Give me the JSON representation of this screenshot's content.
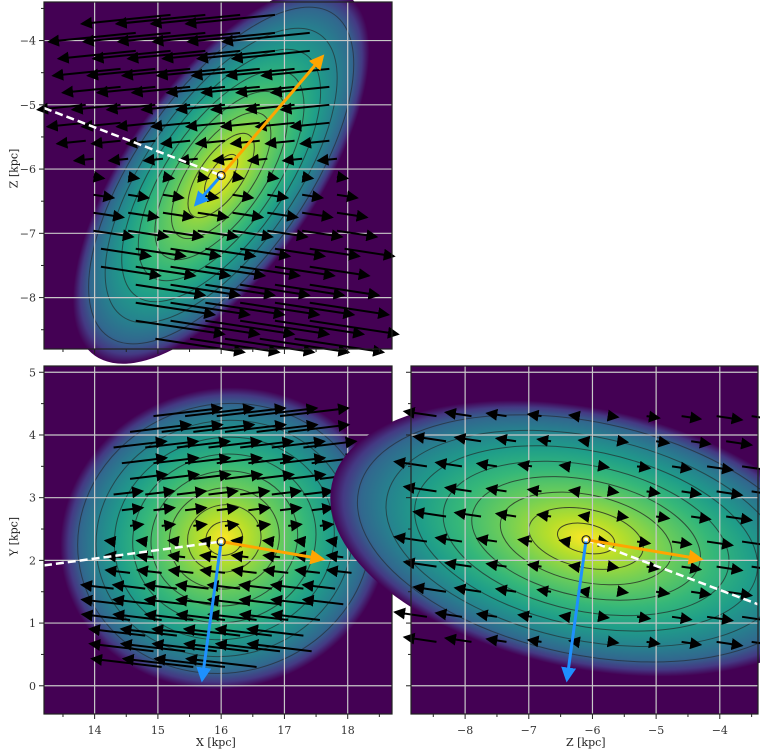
{
  "colors": {
    "background_low": "#440154",
    "mid": "#21918c",
    "peak": "#fde725",
    "grid": "#c8c8c8",
    "orange_arrow": "#ffa500",
    "blue_arrow": "#1e90ff",
    "dashed_line": "#ffffff",
    "quiver": "#000000",
    "contour": "#222222"
  },
  "chart_data": [
    {
      "type": "heatmap",
      "panel": "top-left",
      "title": "",
      "xlabel": "",
      "ylabel": "Z [kpc]",
      "xlim": [
        13.2,
        18.7
      ],
      "ylim": [
        -8.8,
        -3.4
      ],
      "xticks": [
        14,
        15,
        16,
        17,
        18
      ],
      "xtick_labels_shown": false,
      "yticks": [
        -4,
        -5,
        -6,
        -7,
        -8
      ],
      "ytick_labels": [
        "−4",
        "−5",
        "−6",
        "−7",
        "−8"
      ],
      "grid": true,
      "density_peak": {
        "x": 16.0,
        "y": -6.1
      },
      "density_shape": "ellipse elongated along NW-SE diagonal",
      "center_marker": {
        "x": 16.0,
        "y": -6.1
      },
      "orange_vector": {
        "from": [
          16.0,
          -6.1
        ],
        "to": [
          17.6,
          -4.25
        ]
      },
      "blue_vector": {
        "from": [
          16.0,
          -6.1
        ],
        "to": [
          15.6,
          -6.55
        ]
      },
      "dashed_line": {
        "from": [
          13.2,
          -5.05
        ],
        "to": [
          16.0,
          -6.1
        ]
      },
      "quiver_field": "arrows point left (−X) in upper half, right (+X) / down-right in lower half"
    },
    {
      "type": "heatmap",
      "panel": "bottom-left",
      "title": "",
      "xlabel": "X [kpc]",
      "ylabel": "Y [kpc]",
      "xlim": [
        13.2,
        18.7
      ],
      "ylim": [
        -0.45,
        5.1
      ],
      "xticks": [
        14,
        15,
        16,
        17,
        18
      ],
      "xtick_labels": [
        "14",
        "15",
        "16",
        "17",
        "18"
      ],
      "yticks": [
        0,
        1,
        2,
        3,
        4,
        5
      ],
      "ytick_labels": [
        "0",
        "1",
        "2",
        "3",
        "4",
        "5"
      ],
      "grid": true,
      "density_peak": {
        "x": 16.05,
        "y": 2.35
      },
      "density_shape": "roughly circular, slightly tilted",
      "center_marker": {
        "x": 16.0,
        "y": 2.3
      },
      "orange_vector": {
        "from": [
          16.0,
          2.3
        ],
        "to": [
          17.6,
          2.02
        ]
      },
      "blue_vector": {
        "from": [
          16.0,
          2.3
        ],
        "to": [
          15.7,
          0.1
        ]
      },
      "dashed_line": {
        "from": [
          13.2,
          1.92
        ],
        "to": [
          16.0,
          2.3
        ]
      },
      "quiver_field": "arrows point right (+X) in upper half, left (−X) in lower half"
    },
    {
      "type": "heatmap",
      "panel": "bottom-right",
      "title": "",
      "xlabel": "Z [kpc]",
      "ylabel": "",
      "xlim": [
        -8.85,
        -3.4
      ],
      "ylim": [
        -0.45,
        5.1
      ],
      "xticks": [
        -8,
        -7,
        -6,
        -5,
        -4
      ],
      "xtick_labels": [
        "−8",
        "−7",
        "−6",
        "−5",
        "−4"
      ],
      "yticks": [
        0,
        1,
        2,
        3,
        4,
        5
      ],
      "ytick_labels_shown": false,
      "grid": true,
      "density_peak": {
        "x": -6.1,
        "y": 2.35
      },
      "density_shape": "ellipse elongated along Z, tilted downward to the right",
      "center_marker": {
        "x": -6.1,
        "y": 2.33
      },
      "orange_vector": {
        "from": [
          -6.1,
          2.33
        ],
        "to": [
          -4.3,
          2.02
        ]
      },
      "blue_vector": {
        "from": [
          -6.1,
          2.33
        ],
        "to": [
          -6.4,
          0.1
        ]
      },
      "dashed_line": {
        "from": [
          -6.1,
          2.33
        ],
        "to": [
          -3.4,
          1.3
        ]
      },
      "quiver_field": "arrows point left/up-left on left side, right/down-right on right side, short near center"
    }
  ],
  "labels": {
    "top_ylabel": "Z [kpc]",
    "bl_ylabel": "Y [kpc]",
    "bl_xlabel": "X [kpc]",
    "br_xlabel": "Z [kpc]"
  }
}
